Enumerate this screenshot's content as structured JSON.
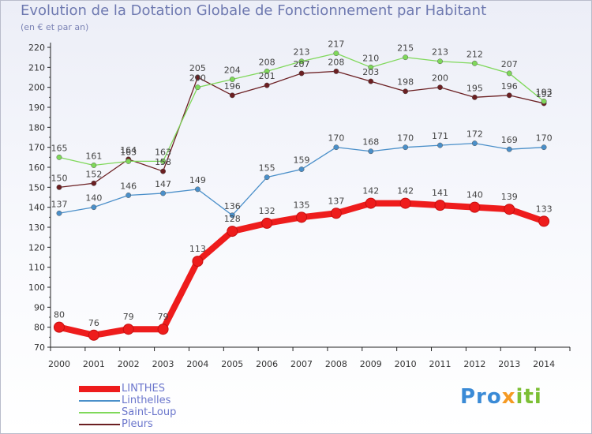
{
  "header": {
    "title": "Evolution de la Dotation Globale de Fonctionnement par Habitant",
    "subtitle": "(en € et par an)"
  },
  "logo": {
    "text": "Proxiti",
    "part1": "Pro",
    "part2": "x",
    "part3": "iti"
  },
  "chart_data": {
    "type": "line",
    "title": "Evolution de la Dotation Globale de Fonctionnement par Habitant",
    "subtitle": "(en € et par an)",
    "xlabel": "",
    "ylabel": "",
    "ylim": [
      70,
      220
    ],
    "ytick_step": 10,
    "grid": false,
    "legend_position": "bottom-left",
    "categories": [
      "2000",
      "2001",
      "2002",
      "2003",
      "2004",
      "2005",
      "2006",
      "2007",
      "2008",
      "2009",
      "2010",
      "2011",
      "2012",
      "2013",
      "2014"
    ],
    "series": [
      {
        "name": "LINTHES",
        "color": "#ee1c1c",
        "values": [
          80,
          76,
          79,
          79,
          113,
          128,
          132,
          135,
          137,
          142,
          142,
          141,
          140,
          139,
          133
        ]
      },
      {
        "name": "Linthelles",
        "color": "#4a8fc9",
        "values": [
          137,
          140,
          146,
          147,
          149,
          136,
          155,
          159,
          170,
          168,
          170,
          171,
          172,
          169,
          170
        ]
      },
      {
        "name": "Saint-Loup",
        "color": "#7fd85a",
        "values": [
          165,
          161,
          163,
          163,
          200,
          204,
          208,
          213,
          217,
          210,
          215,
          213,
          212,
          207,
          193
        ]
      },
      {
        "name": "Pleurs",
        "color": "#6b1f22",
        "values": [
          150,
          152,
          164,
          158,
          205,
          196,
          201,
          207,
          208,
          203,
          198,
          200,
          195,
          196,
          192
        ]
      }
    ]
  }
}
